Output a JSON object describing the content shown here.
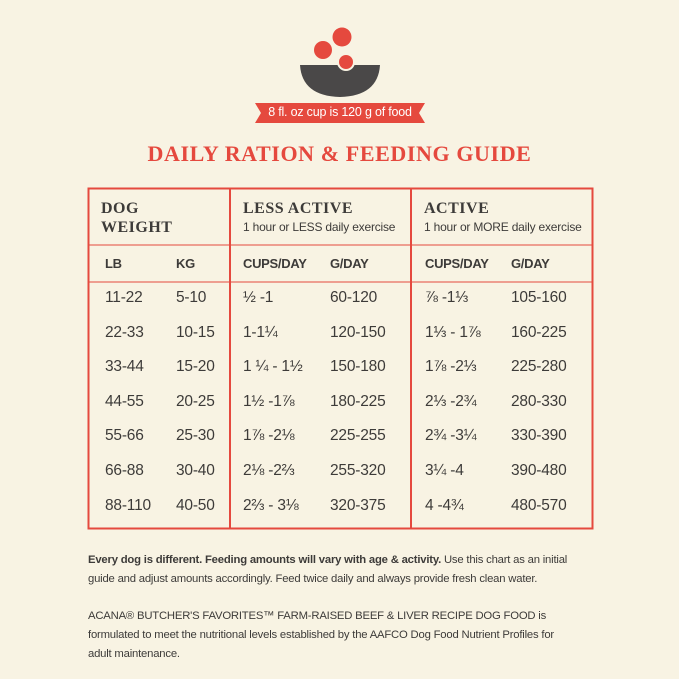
{
  "badge": "8 fl. oz cup is 120 g of food",
  "title": "DAILY RATION & FEEDING GUIDE",
  "table": {
    "groups": [
      {
        "title": "DOG WEIGHT"
      },
      {
        "title": "LESS ACTIVE",
        "subtitle": "1 hour or LESS daily exercise"
      },
      {
        "title": "ACTIVE",
        "subtitle": "1 hour or MORE daily exercise"
      }
    ],
    "columns": [
      "LB",
      "KG",
      "CUPS/DAY",
      "G/DAY",
      "CUPS/DAY",
      "G/DAY"
    ],
    "rows": [
      [
        "11-22",
        "5-10",
        "½ -1",
        "60-120",
        "⅞ -1⅓",
        "105-160"
      ],
      [
        "22-33",
        "10-15",
        "1-1¼",
        "120-150",
        "1⅓ - 1⅞",
        "160-225"
      ],
      [
        "33-44",
        "15-20",
        "1 ¼ - 1½",
        "150-180",
        "1⅞ -2⅓",
        "225-280"
      ],
      [
        "44-55",
        "20-25",
        "1½ -1⅞",
        "180-225",
        "2⅓ -2¾",
        "280-330"
      ],
      [
        "55-66",
        "25-30",
        "1⅞ -2⅛",
        "225-255",
        "2¾ -3¼",
        "330-390"
      ],
      [
        "66-88",
        "30-40",
        "2⅛ -2⅔",
        "255-320",
        "3¼ -4",
        "390-480"
      ],
      [
        "88-110",
        "40-50",
        "2⅔ - 3⅛",
        "320-375",
        "4 -4¾",
        "480-570"
      ]
    ]
  },
  "notes": [
    {
      "bold": "Every dog is different. Feeding amounts will vary with age & activity.",
      "text": " Use this chart as an initial guide and adjust amounts accordingly. Feed twice daily and always provide fresh clean water."
    },
    {
      "text": "ACANA® BUTCHER'S FAVORITES™ FARM-RAISED BEEF & LIVER RECIPE DOG FOOD is formulated to meet the nutritional levels established by the AAFCO Dog Food Nutrient Profiles for adult maintenance."
    }
  ]
}
